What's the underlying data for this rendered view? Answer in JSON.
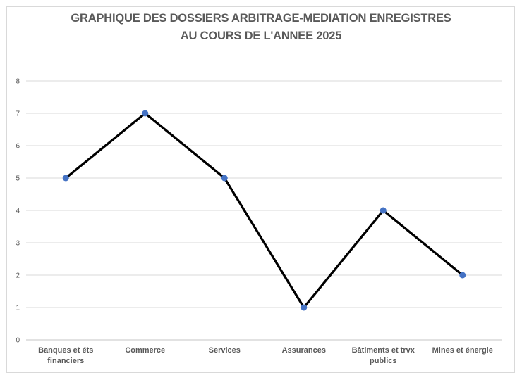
{
  "chart_data": {
    "type": "line",
    "title_lines": [
      "GRAPHIQUE DES DOSSIERS ARBITRAGE-MEDIATION ENREGISTRES",
      "AU COURS DE L'ANNEE 2025"
    ],
    "categories": [
      {
        "lines": [
          "Banques et éts",
          "financiers"
        ]
      },
      {
        "lines": [
          "Commerce"
        ]
      },
      {
        "lines": [
          "Services"
        ]
      },
      {
        "lines": [
          "Assurances"
        ]
      },
      {
        "lines": [
          "Bâtiments et trvx",
          "publics"
        ]
      },
      {
        "lines": [
          "Mines et énergie"
        ]
      }
    ],
    "values": [
      5,
      7,
      5,
      1,
      4,
      2
    ],
    "xlabel": "",
    "ylabel": "",
    "ylim": [
      0,
      8
    ],
    "yticks": [
      0,
      1,
      2,
      3,
      4,
      5,
      6,
      7,
      8
    ],
    "grid": true,
    "legend": "none",
    "colors": {
      "line": "#000000",
      "marker": "#4472C4",
      "gridline": "#D9D9D9",
      "axis_line": "#C6C6C6",
      "text": "#595959",
      "title": "#595959",
      "chart_border": "#D9D9D9",
      "background": "#FFFFFF"
    }
  }
}
